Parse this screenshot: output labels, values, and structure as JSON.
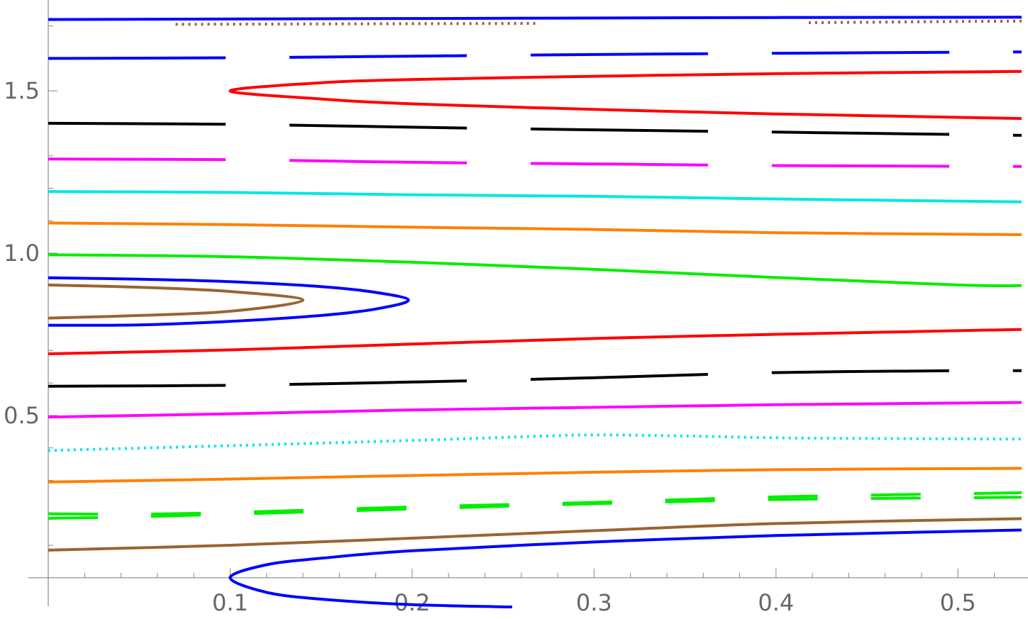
{
  "chart_data": {
    "type": "line",
    "title": "",
    "xlabel": "",
    "ylabel": "",
    "xlim": [
      0.0,
      0.535
    ],
    "ylim": [
      -0.09,
      1.78
    ],
    "x_ticks": [
      {
        "value": 0.1,
        "label": "0.1"
      },
      {
        "value": 0.2,
        "label": "0.2"
      },
      {
        "value": 0.3,
        "label": "0.3"
      },
      {
        "value": 0.4,
        "label": "0.4"
      },
      {
        "value": 0.5,
        "label": "0.5"
      }
    ],
    "y_ticks": [
      {
        "value": 0.5,
        "label": "0.5"
      },
      {
        "value": 1.0,
        "label": "1.0"
      },
      {
        "value": 1.5,
        "label": "1.5"
      }
    ],
    "grid": false,
    "legend": "none",
    "series": [
      {
        "color": "#0000ff",
        "style": "solid",
        "points": [
          [
            0.255,
            -0.09
          ],
          [
            0.2,
            -0.083
          ],
          [
            0.15,
            -0.066
          ],
          [
            0.12,
            -0.045
          ],
          [
            0.1,
            0.0
          ],
          [
            0.12,
            0.04
          ],
          [
            0.15,
            0.06
          ],
          [
            0.2,
            0.083
          ],
          [
            0.3,
            0.11
          ],
          [
            0.4,
            0.13
          ],
          [
            0.535,
            0.147
          ]
        ]
      },
      {
        "color": "#9a6431",
        "style": "solid",
        "points": [
          [
            0.0,
            0.085
          ],
          [
            0.1,
            0.1
          ],
          [
            0.2,
            0.122
          ],
          [
            0.3,
            0.145
          ],
          [
            0.4,
            0.167
          ],
          [
            0.535,
            0.182
          ]
        ]
      },
      {
        "color": "#00ee00",
        "style": "dashed",
        "points": [
          [
            0.0,
            0.197
          ],
          [
            0.05,
            0.196
          ],
          [
            0.1,
            0.201
          ],
          [
            0.2,
            0.218
          ],
          [
            0.3,
            0.232
          ],
          [
            0.4,
            0.249
          ],
          [
            0.535,
            0.262
          ]
        ]
      },
      {
        "color": "#00ee00",
        "style": "dashed",
        "points": [
          [
            0.0,
            0.183
          ],
          [
            0.05,
            0.188
          ],
          [
            0.1,
            0.196
          ],
          [
            0.2,
            0.212
          ],
          [
            0.3,
            0.228
          ],
          [
            0.4,
            0.241
          ],
          [
            0.535,
            0.248
          ]
        ]
      },
      {
        "color": "#ff8000",
        "style": "solid",
        "points": [
          [
            0.0,
            0.295
          ],
          [
            0.1,
            0.304
          ],
          [
            0.2,
            0.315
          ],
          [
            0.3,
            0.325
          ],
          [
            0.4,
            0.333
          ],
          [
            0.535,
            0.337
          ]
        ]
      },
      {
        "color": "#00e6e6",
        "style": "dotted",
        "points": [
          [
            0.0,
            0.392
          ],
          [
            0.1,
            0.407
          ],
          [
            0.2,
            0.423
          ],
          [
            0.27,
            0.436
          ],
          [
            0.3,
            0.44
          ],
          [
            0.35,
            0.437
          ],
          [
            0.4,
            0.431
          ],
          [
            0.45,
            0.429
          ],
          [
            0.535,
            0.427
          ]
        ]
      },
      {
        "color": "#ff00ff",
        "style": "solid",
        "points": [
          [
            0.0,
            0.495
          ],
          [
            0.1,
            0.505
          ],
          [
            0.2,
            0.517
          ],
          [
            0.3,
            0.525
          ],
          [
            0.4,
            0.533
          ],
          [
            0.535,
            0.54
          ]
        ]
      },
      {
        "color": "#000000",
        "style": "longdash",
        "points": [
          [
            0.0,
            0.59
          ],
          [
            0.1,
            0.593
          ],
          [
            0.2,
            0.603
          ],
          [
            0.3,
            0.616
          ],
          [
            0.4,
            0.632
          ],
          [
            0.5,
            0.638
          ],
          [
            0.535,
            0.638
          ]
        ]
      },
      {
        "color": "#ff0000",
        "style": "solid",
        "points": [
          [
            0.0,
            0.69
          ],
          [
            0.1,
            0.702
          ],
          [
            0.2,
            0.72
          ],
          [
            0.3,
            0.737
          ],
          [
            0.4,
            0.75
          ],
          [
            0.535,
            0.765
          ]
        ]
      },
      {
        "color": "#0000ff",
        "style": "solid",
        "points": [
          [
            0.0,
            0.778
          ],
          [
            0.05,
            0.779
          ],
          [
            0.1,
            0.79
          ],
          [
            0.15,
            0.808
          ],
          [
            0.18,
            0.828
          ],
          [
            0.198,
            0.855
          ],
          [
            0.18,
            0.879
          ],
          [
            0.15,
            0.897
          ],
          [
            0.1,
            0.912
          ],
          [
            0.05,
            0.92
          ],
          [
            0.0,
            0.924
          ]
        ]
      },
      {
        "color": "#9a6431",
        "style": "solid",
        "points": [
          [
            0.0,
            0.8
          ],
          [
            0.05,
            0.808
          ],
          [
            0.1,
            0.821
          ],
          [
            0.14,
            0.855
          ],
          [
            0.1,
            0.882
          ],
          [
            0.05,
            0.895
          ],
          [
            0.0,
            0.902
          ]
        ]
      },
      {
        "color": "#00ee00",
        "style": "solid",
        "points": [
          [
            0.0,
            0.995
          ],
          [
            0.1,
            0.989
          ],
          [
            0.2,
            0.972
          ],
          [
            0.3,
            0.95
          ],
          [
            0.4,
            0.925
          ],
          [
            0.5,
            0.902
          ],
          [
            0.535,
            0.9
          ]
        ]
      },
      {
        "color": "#ff8000",
        "style": "solid",
        "points": [
          [
            0.0,
            1.093
          ],
          [
            0.1,
            1.088
          ],
          [
            0.2,
            1.08
          ],
          [
            0.3,
            1.073
          ],
          [
            0.4,
            1.063
          ],
          [
            0.535,
            1.057
          ]
        ]
      },
      {
        "color": "#00e6e6",
        "style": "solid",
        "points": [
          [
            0.0,
            1.19
          ],
          [
            0.1,
            1.187
          ],
          [
            0.2,
            1.18
          ],
          [
            0.3,
            1.175
          ],
          [
            0.4,
            1.167
          ],
          [
            0.535,
            1.158
          ]
        ]
      },
      {
        "color": "#ff00ff",
        "style": "longdash",
        "points": [
          [
            0.0,
            1.29
          ],
          [
            0.1,
            1.288
          ],
          [
            0.2,
            1.28
          ],
          [
            0.3,
            1.275
          ],
          [
            0.4,
            1.27
          ],
          [
            0.535,
            1.267
          ]
        ]
      },
      {
        "color": "#000000",
        "style": "longdash",
        "points": [
          [
            0.0,
            1.4
          ],
          [
            0.1,
            1.397
          ],
          [
            0.2,
            1.388
          ],
          [
            0.3,
            1.38
          ],
          [
            0.4,
            1.373
          ],
          [
            0.535,
            1.363
          ]
        ]
      },
      {
        "color": "#ff0000",
        "style": "solid",
        "points": [
          [
            0.535,
            1.415
          ],
          [
            0.4,
            1.429
          ],
          [
            0.3,
            1.443
          ],
          [
            0.2,
            1.46
          ],
          [
            0.15,
            1.475
          ],
          [
            0.1,
            1.5
          ],
          [
            0.15,
            1.525
          ],
          [
            0.2,
            1.535
          ],
          [
            0.3,
            1.545
          ],
          [
            0.4,
            1.553
          ],
          [
            0.535,
            1.56
          ]
        ]
      },
      {
        "color": "#0000ff",
        "style": "longdash",
        "points": [
          [
            0.0,
            1.6
          ],
          [
            0.1,
            1.602
          ],
          [
            0.2,
            1.607
          ],
          [
            0.3,
            1.612
          ],
          [
            0.4,
            1.616
          ],
          [
            0.535,
            1.62
          ]
        ]
      },
      {
        "color": "#9a6431",
        "style": "dotted",
        "points": [
          [
            0.07,
            1.705
          ],
          [
            0.2,
            1.707
          ],
          [
            0.27,
            1.708
          ]
        ]
      },
      {
        "color": "#9a6431",
        "style": "dotted",
        "points": [
          [
            0.418,
            1.71
          ],
          [
            0.48,
            1.713
          ],
          [
            0.535,
            1.715
          ]
        ]
      },
      {
        "color": "#0000ff",
        "style": "solid",
        "points": [
          [
            0.0,
            1.72
          ],
          [
            0.2,
            1.723
          ],
          [
            0.4,
            1.726
          ],
          [
            0.535,
            1.727
          ]
        ]
      }
    ]
  }
}
